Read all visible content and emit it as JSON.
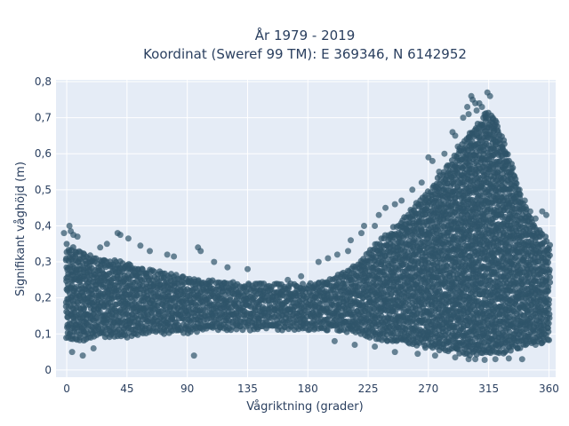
{
  "chart_data": {
    "type": "scatter",
    "title_lines": [
      "År 1979 - 2019",
      "Koordinat (Sweref 99 TM): E 369346, N 6142952"
    ],
    "xlabel": "Vågriktning (grader)",
    "ylabel": "Signifikant våghöjd (m)",
    "xlim": [
      -8,
      365
    ],
    "ylim": [
      -0.02,
      0.805
    ],
    "x_ticks": [
      0,
      45,
      90,
      135,
      180,
      225,
      270,
      315,
      360
    ],
    "x_tick_labels": [
      "0",
      "45",
      "90",
      "135",
      "180",
      "225",
      "270",
      "315",
      "360"
    ],
    "y_ticks": [
      0,
      0.1,
      0.2,
      0.3,
      0.4,
      0.5,
      0.6,
      0.7,
      0.8
    ],
    "y_tick_labels": [
      "0",
      "0,1",
      "0,2",
      "0,3",
      "0,4",
      "0,5",
      "0,6",
      "0,7",
      "0,8"
    ],
    "grid": true,
    "colors": {
      "background": "#e5ecf6",
      "marker": "#2f5469",
      "text": "#2a3f5f"
    },
    "series": [
      {
        "envelope": {
          "x": [
            0,
            10,
            25,
            45,
            60,
            90,
            110,
            135,
            160,
            180,
            200,
            215,
            225,
            240,
            255,
            270,
            285,
            300,
            310,
            315,
            320,
            330,
            340,
            350,
            360
          ],
          "y_min": [
            0.08,
            0.08,
            0.09,
            0.09,
            0.1,
            0.1,
            0.11,
            0.11,
            0.11,
            0.11,
            0.11,
            0.1,
            0.09,
            0.08,
            0.07,
            0.06,
            0.05,
            0.04,
            0.04,
            0.04,
            0.04,
            0.05,
            0.06,
            0.07,
            0.08
          ],
          "y_max": [
            0.35,
            0.33,
            0.31,
            0.3,
            0.28,
            0.26,
            0.25,
            0.24,
            0.24,
            0.24,
            0.26,
            0.29,
            0.33,
            0.38,
            0.44,
            0.5,
            0.57,
            0.66,
            0.7,
            0.72,
            0.7,
            0.6,
            0.48,
            0.4,
            0.36
          ]
        },
        "outliers": [
          [
            2,
            0.4
          ],
          [
            3,
            0.385
          ],
          [
            5,
            0.375
          ],
          [
            -2,
            0.38
          ],
          [
            8,
            0.37
          ],
          [
            4,
            0.05
          ],
          [
            12,
            0.04
          ],
          [
            20,
            0.06
          ],
          [
            38,
            0.38
          ],
          [
            40,
            0.375
          ],
          [
            46,
            0.365
          ],
          [
            55,
            0.345
          ],
          [
            30,
            0.35
          ],
          [
            25,
            0.34
          ],
          [
            62,
            0.33
          ],
          [
            75,
            0.32
          ],
          [
            80,
            0.315
          ],
          [
            98,
            0.34
          ],
          [
            100,
            0.33
          ],
          [
            95,
            0.04
          ],
          [
            110,
            0.3
          ],
          [
            120,
            0.285
          ],
          [
            135,
            0.28
          ],
          [
            165,
            0.25
          ],
          [
            175,
            0.26
          ],
          [
            188,
            0.3
          ],
          [
            195,
            0.31
          ],
          [
            202,
            0.32
          ],
          [
            210,
            0.33
          ],
          [
            212,
            0.36
          ],
          [
            220,
            0.38
          ],
          [
            222,
            0.4
          ],
          [
            230,
            0.4
          ],
          [
            233,
            0.43
          ],
          [
            238,
            0.45
          ],
          [
            245,
            0.46
          ],
          [
            250,
            0.47
          ],
          [
            258,
            0.5
          ],
          [
            265,
            0.52
          ],
          [
            270,
            0.59
          ],
          [
            273,
            0.58
          ],
          [
            278,
            0.55
          ],
          [
            282,
            0.6
          ],
          [
            288,
            0.66
          ],
          [
            290,
            0.65
          ],
          [
            292,
            0.62
          ],
          [
            296,
            0.7
          ],
          [
            299,
            0.73
          ],
          [
            300,
            0.71
          ],
          [
            302,
            0.76
          ],
          [
            303,
            0.75
          ],
          [
            305,
            0.74
          ],
          [
            306,
            0.72
          ],
          [
            308,
            0.74
          ],
          [
            310,
            0.73
          ],
          [
            312,
            0.71
          ],
          [
            314,
            0.77
          ],
          [
            316,
            0.76
          ],
          [
            318,
            0.7
          ],
          [
            320,
            0.68
          ],
          [
            322,
            0.66
          ],
          [
            325,
            0.62
          ],
          [
            328,
            0.58
          ],
          [
            332,
            0.55
          ],
          [
            335,
            0.52
          ],
          [
            338,
            0.5
          ],
          [
            342,
            0.47
          ],
          [
            346,
            0.44
          ],
          [
            350,
            0.42
          ],
          [
            355,
            0.44
          ],
          [
            358,
            0.43
          ],
          [
            200,
            0.08
          ],
          [
            215,
            0.07
          ],
          [
            230,
            0.065
          ],
          [
            245,
            0.05
          ],
          [
            262,
            0.045
          ],
          [
            275,
            0.04
          ],
          [
            290,
            0.035
          ],
          [
            300,
            0.03
          ],
          [
            305,
            0.03
          ],
          [
            312,
            0.028
          ],
          [
            320,
            0.03
          ],
          [
            330,
            0.032
          ],
          [
            340,
            0.03
          ],
          [
            350,
            0.07
          ]
        ]
      }
    ]
  }
}
